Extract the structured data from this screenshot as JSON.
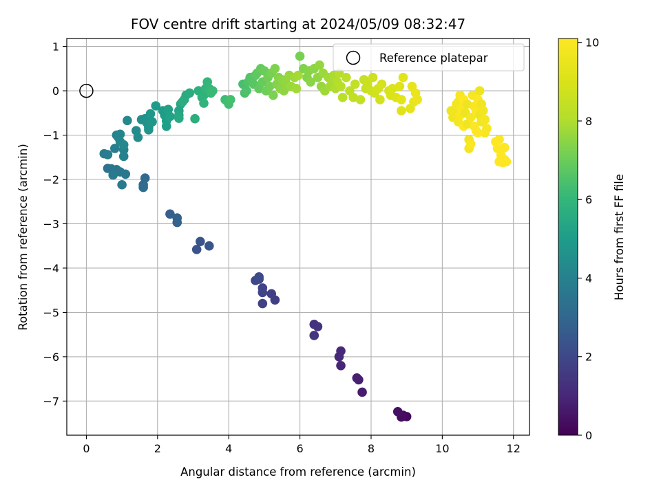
{
  "chart_data": {
    "type": "scatter",
    "title": "FOV centre drift starting at 2024/05/09 08:32:47",
    "xlabel": "Angular distance from reference (arcmin)",
    "ylabel": "Rotation from reference (arcmin)",
    "xlim": [
      -0.55,
      12.45
    ],
    "ylim": [
      -7.77,
      1.18
    ],
    "xticks": [
      0,
      2,
      4,
      6,
      8,
      10,
      12
    ],
    "yticks": [
      1,
      0,
      -1,
      -2,
      -3,
      -4,
      -5,
      -6,
      -7
    ],
    "grid": true,
    "legend": {
      "placement": "top-right",
      "entries": [
        "Reference platepar"
      ]
    },
    "reference_point": {
      "x": 0,
      "y": 0,
      "label": "Reference platepar"
    },
    "colorbar": {
      "label": "Hours from first FF file",
      "range": [
        0,
        10.1
      ],
      "ticks": [
        0,
        2,
        4,
        6,
        8,
        10
      ],
      "colormap": "viridis"
    },
    "series": [
      {
        "points": [
          [
            9.0,
            -7.35,
            0.2
          ],
          [
            8.85,
            -7.36,
            0.25
          ],
          [
            8.9,
            -7.32,
            0.3
          ],
          [
            8.75,
            -7.24,
            0.4
          ],
          [
            7.75,
            -6.8,
            0.7
          ],
          [
            7.65,
            -6.52,
            0.75
          ],
          [
            7.6,
            -6.48,
            0.8
          ],
          [
            7.15,
            -6.2,
            0.95
          ],
          [
            7.1,
            -6.0,
            1.0
          ],
          [
            7.15,
            -5.87,
            1.05
          ],
          [
            6.4,
            -5.27,
            1.3
          ],
          [
            6.5,
            -5.32,
            1.35
          ],
          [
            6.4,
            -5.52,
            1.4
          ],
          [
            5.3,
            -4.72,
            1.7
          ],
          [
            5.2,
            -4.58,
            1.75
          ],
          [
            4.95,
            -4.8,
            1.8
          ],
          [
            4.95,
            -4.45,
            1.85
          ],
          [
            4.95,
            -4.55,
            1.9
          ],
          [
            4.85,
            -4.25,
            1.95
          ],
          [
            4.75,
            -4.28,
            2.0
          ],
          [
            4.85,
            -4.2,
            2.05
          ],
          [
            3.1,
            -3.58,
            2.35
          ],
          [
            3.2,
            -3.4,
            2.4
          ],
          [
            3.45,
            -3.5,
            2.45
          ],
          [
            2.35,
            -2.78,
            2.75
          ],
          [
            2.55,
            -2.87,
            2.8
          ],
          [
            2.55,
            -2.97,
            2.85
          ],
          [
            1.6,
            -2.12,
            3.1
          ],
          [
            1.65,
            -1.97,
            3.15
          ],
          [
            1.6,
            -2.18,
            3.2
          ],
          [
            0.6,
            -1.75,
            3.4
          ],
          [
            0.7,
            -1.76,
            3.45
          ],
          [
            0.8,
            -1.8,
            3.5
          ],
          [
            0.85,
            -1.78,
            3.55
          ],
          [
            0.95,
            -1.83,
            3.6
          ],
          [
            1.1,
            -1.88,
            3.65
          ],
          [
            0.75,
            -1.9,
            3.7
          ],
          [
            1.0,
            -2.12,
            3.75
          ],
          [
            0.5,
            -1.42,
            3.8
          ],
          [
            0.6,
            -1.44,
            3.85
          ],
          [
            0.8,
            -1.3,
            3.9
          ],
          [
            1.05,
            -1.33,
            3.95
          ],
          [
            1.05,
            -1.48,
            4.0
          ],
          [
            0.85,
            -1.0,
            4.05
          ],
          [
            0.9,
            -1.05,
            4.1
          ],
          [
            0.95,
            -0.98,
            4.15
          ],
          [
            0.95,
            -1.15,
            4.2
          ],
          [
            1.05,
            -1.22,
            4.25
          ],
          [
            1.15,
            -0.67,
            4.3
          ],
          [
            1.4,
            -0.9,
            4.35
          ],
          [
            1.45,
            -1.05,
            4.4
          ],
          [
            1.55,
            -0.65,
            4.5
          ],
          [
            1.65,
            -0.63,
            4.55
          ],
          [
            1.7,
            -0.72,
            4.6
          ],
          [
            1.75,
            -0.82,
            4.65
          ],
          [
            1.75,
            -0.88,
            4.7
          ],
          [
            1.8,
            -0.52,
            4.75
          ],
          [
            1.85,
            -0.7,
            4.8
          ],
          [
            1.95,
            -0.34,
            4.9
          ],
          [
            2.15,
            -0.45,
            4.95
          ],
          [
            2.2,
            -0.55,
            5.0
          ],
          [
            2.25,
            -0.68,
            5.05
          ],
          [
            2.25,
            -0.8,
            5.1
          ],
          [
            2.3,
            -0.42,
            5.15
          ],
          [
            2.35,
            -0.58,
            5.2
          ],
          [
            2.6,
            -0.45,
            5.3
          ],
          [
            2.65,
            -0.3,
            5.35
          ],
          [
            2.6,
            -0.55,
            5.4
          ],
          [
            2.6,
            -0.62,
            5.45
          ],
          [
            2.75,
            -0.2,
            5.5
          ],
          [
            2.8,
            -0.1,
            5.55
          ],
          [
            2.9,
            -0.05,
            5.6
          ],
          [
            2.7,
            -0.25,
            5.65
          ],
          [
            3.05,
            -0.63,
            5.7
          ],
          [
            3.15,
            0.0,
            5.75
          ],
          [
            3.25,
            -0.15,
            5.8
          ],
          [
            3.3,
            -0.1,
            5.85
          ],
          [
            3.3,
            -0.28,
            5.9
          ],
          [
            3.35,
            0.05,
            5.95
          ],
          [
            3.4,
            0.2,
            6.0
          ],
          [
            3.45,
            0.05,
            6.05
          ],
          [
            3.5,
            -0.05,
            6.1
          ],
          [
            3.55,
            0.0,
            6.15
          ],
          [
            3.9,
            -0.2,
            6.2
          ],
          [
            3.95,
            -0.23,
            6.25
          ],
          [
            4.0,
            -0.3,
            6.3
          ],
          [
            4.05,
            -0.2,
            6.35
          ],
          [
            4.4,
            0.15,
            6.4
          ],
          [
            4.45,
            -0.05,
            6.45
          ],
          [
            4.5,
            0.0,
            6.5
          ],
          [
            4.55,
            0.2,
            6.55
          ],
          [
            4.6,
            0.3,
            6.6
          ],
          [
            4.65,
            0.25,
            6.65
          ],
          [
            4.7,
            0.15,
            6.7
          ],
          [
            4.75,
            0.35,
            6.75
          ],
          [
            4.8,
            0.4,
            6.8
          ],
          [
            4.85,
            0.05,
            6.85
          ],
          [
            4.9,
            0.5,
            6.9
          ],
          [
            4.95,
            0.2,
            6.95
          ],
          [
            5.0,
            0.45,
            7.0
          ],
          [
            5.05,
            0.0,
            7.05
          ],
          [
            5.1,
            0.3,
            7.1
          ],
          [
            5.15,
            0.1,
            7.15
          ],
          [
            5.2,
            0.4,
            7.2
          ],
          [
            5.25,
            -0.1,
            7.25
          ],
          [
            5.3,
            0.5,
            7.3
          ],
          [
            5.35,
            0.15,
            7.35
          ],
          [
            5.4,
            0.3,
            7.4
          ],
          [
            5.45,
            0.05,
            7.45
          ],
          [
            5.5,
            0.25,
            7.5
          ],
          [
            5.55,
            0.0,
            7.55
          ],
          [
            5.6,
            0.2,
            7.6
          ],
          [
            5.7,
            0.35,
            7.65
          ],
          [
            5.75,
            0.1,
            7.7
          ],
          [
            5.85,
            0.3,
            7.75
          ],
          [
            5.9,
            0.05,
            7.8
          ],
          [
            5.95,
            0.35,
            7.85
          ],
          [
            6.0,
            0.78,
            7.2
          ],
          [
            6.1,
            0.5,
            7.3
          ],
          [
            6.2,
            0.3,
            7.35
          ],
          [
            6.25,
            0.45,
            7.4
          ],
          [
            6.3,
            0.2,
            7.45
          ],
          [
            6.4,
            0.5,
            7.5
          ],
          [
            6.5,
            0.3,
            7.55
          ],
          [
            6.55,
            0.58,
            7.6
          ],
          [
            6.6,
            0.1,
            7.65
          ],
          [
            6.65,
            0.4,
            7.7
          ],
          [
            6.7,
            0.0,
            7.75
          ],
          [
            6.8,
            0.3,
            7.8
          ],
          [
            6.85,
            0.1,
            7.85
          ],
          [
            6.9,
            0.2,
            7.9
          ],
          [
            6.95,
            0.35,
            7.95
          ],
          [
            7.0,
            0.05,
            8.0
          ],
          [
            7.05,
            0.2,
            8.05
          ],
          [
            7.1,
            0.4,
            8.1
          ],
          [
            7.15,
            0.1,
            8.15
          ],
          [
            7.2,
            -0.15,
            8.2
          ],
          [
            7.3,
            0.3,
            8.25
          ],
          [
            7.4,
            0.0,
            8.3
          ],
          [
            7.5,
            -0.15,
            8.35
          ],
          [
            7.55,
            0.15,
            8.4
          ],
          [
            7.7,
            -0.2,
            8.45
          ],
          [
            7.8,
            0.25,
            8.5
          ],
          [
            7.85,
            0.05,
            8.55
          ],
          [
            7.9,
            0.15,
            8.6
          ],
          [
            8.0,
            0.0,
            8.65
          ],
          [
            8.05,
            0.3,
            8.7
          ],
          [
            8.1,
            -0.05,
            8.75
          ],
          [
            8.2,
            0.05,
            8.8
          ],
          [
            8.25,
            -0.2,
            8.85
          ],
          [
            8.3,
            0.15,
            8.9
          ],
          [
            8.5,
            0.0,
            8.95
          ],
          [
            8.55,
            -0.1,
            9.0
          ],
          [
            8.6,
            0.05,
            9.05
          ],
          [
            8.7,
            -0.15,
            9.1
          ],
          [
            8.8,
            0.1,
            9.15
          ],
          [
            8.85,
            -0.45,
            9.2
          ],
          [
            8.9,
            0.3,
            9.25
          ],
          [
            8.85,
            -0.2,
            9.3
          ],
          [
            9.1,
            -0.4,
            9.35
          ],
          [
            9.15,
            0.1,
            9.4
          ],
          [
            9.2,
            -0.25,
            9.45
          ],
          [
            9.25,
            -0.05,
            9.5
          ],
          [
            9.3,
            -0.2,
            9.55
          ],
          [
            10.25,
            -0.45,
            9.6
          ],
          [
            10.3,
            -0.6,
            9.65
          ],
          [
            10.35,
            -0.5,
            9.7
          ],
          [
            10.4,
            -0.3,
            9.75
          ],
          [
            10.45,
            -0.25,
            9.8
          ],
          [
            10.45,
            -0.7,
            9.85
          ],
          [
            10.5,
            -0.1,
            9.9
          ],
          [
            10.5,
            -0.55,
            9.95
          ],
          [
            10.55,
            -0.4,
            10.0
          ],
          [
            10.6,
            -0.8,
            10.05
          ],
          [
            10.6,
            -0.2,
            10.1
          ],
          [
            10.65,
            -0.5,
            9.6
          ],
          [
            10.7,
            -0.3,
            9.65
          ],
          [
            10.7,
            -0.75,
            9.7
          ],
          [
            10.75,
            -1.1,
            9.75
          ],
          [
            10.75,
            -1.3,
            9.8
          ],
          [
            10.8,
            -0.6,
            9.85
          ],
          [
            10.85,
            -0.1,
            9.9
          ],
          [
            10.9,
            -0.35,
            9.95
          ],
          [
            10.95,
            -0.45,
            10.0
          ],
          [
            10.95,
            -0.9,
            10.05
          ],
          [
            11.0,
            -0.2,
            10.1
          ],
          [
            11.05,
            -0.55,
            9.6
          ],
          [
            11.05,
            0.0,
            9.65
          ],
          [
            11.1,
            -0.3,
            9.7
          ],
          [
            11.1,
            -0.7,
            9.75
          ],
          [
            11.15,
            -0.45,
            9.8
          ],
          [
            11.2,
            -0.65,
            9.85
          ],
          [
            11.2,
            -0.95,
            9.9
          ],
          [
            11.25,
            -0.85,
            9.95
          ],
          [
            10.8,
            -1.2,
            10.0
          ],
          [
            10.9,
            -0.8,
            10.05
          ],
          [
            11.0,
            -0.95,
            10.1
          ],
          [
            11.5,
            -1.15,
            10.1
          ],
          [
            11.55,
            -1.3,
            10.1
          ],
          [
            11.6,
            -1.1,
            10.1
          ],
          [
            11.6,
            -1.6,
            10.1
          ],
          [
            11.65,
            -1.45,
            10.1
          ],
          [
            11.7,
            -1.3,
            10.1
          ],
          [
            11.7,
            -1.62,
            10.1
          ],
          [
            11.75,
            -1.55,
            10.1
          ],
          [
            11.8,
            -1.6,
            10.1
          ],
          [
            11.75,
            -1.28,
            10.1
          ]
        ]
      }
    ]
  }
}
